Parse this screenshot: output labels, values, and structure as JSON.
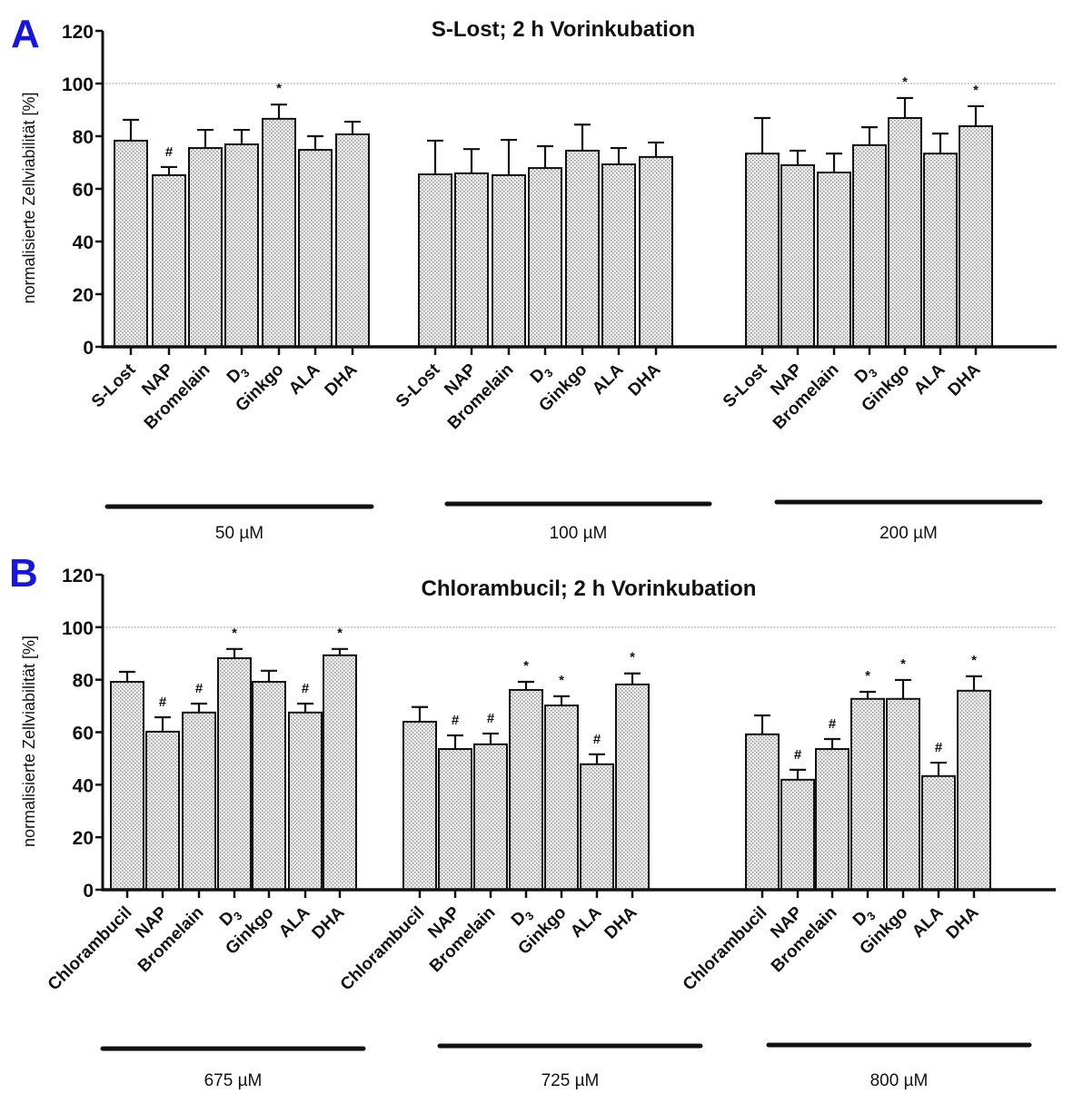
{
  "chart_data": [
    {
      "type": "bar",
      "panel": "A",
      "title": "S-Lost; 2 h Vorinkubation",
      "xlabel": "",
      "ylabel": "normalisierte Zellviabilität [%]",
      "ylim": [
        0,
        120
      ],
      "yticks": [
        0,
        20,
        40,
        60,
        80,
        100,
        120
      ],
      "reference_line": 100,
      "groups": [
        {
          "label": "50 µM",
          "categories": [
            "S-Lost",
            "NAP",
            "Bromelain",
            "D3",
            "Ginkgo",
            "ALA",
            "DHA"
          ],
          "values": [
            78.3,
            65.2,
            75.5,
            76.9,
            86.6,
            74.8,
            80.7
          ],
          "error_upper": [
            86.2,
            68.3,
            82.4,
            82.4,
            92.0,
            80.0,
            85.5
          ],
          "markers": [
            "",
            "#",
            "",
            "",
            "*",
            "",
            ""
          ]
        },
        {
          "label": "100 µM",
          "categories": [
            "S-Lost",
            "NAP",
            "Bromelain",
            "D3",
            "Ginkgo",
            "ALA",
            "DHA"
          ],
          "values": [
            65.5,
            65.9,
            65.2,
            67.9,
            74.5,
            69.3,
            72.1
          ],
          "error_upper": [
            78.3,
            75.1,
            78.6,
            76.2,
            84.4,
            75.5,
            77.6
          ],
          "markers": [
            "",
            "",
            "",
            "",
            "",
            "",
            ""
          ]
        },
        {
          "label": "200 µM",
          "categories": [
            "S-Lost",
            "NAP",
            "Bromelain",
            "D3",
            "Ginkgo",
            "ALA",
            "DHA"
          ],
          "values": [
            73.4,
            69.0,
            66.2,
            76.6,
            86.9,
            73.4,
            83.8
          ],
          "error_upper": [
            86.9,
            74.5,
            73.4,
            83.4,
            94.5,
            81.0,
            91.4
          ],
          "markers": [
            "",
            "",
            "",
            "",
            "*",
            "",
            "*"
          ]
        }
      ]
    },
    {
      "type": "bar",
      "panel": "B",
      "title": "Chlorambucil; 2 h Vorinkubation",
      "xlabel": "",
      "ylabel": "normalisierte Zellviabilität [%]",
      "ylim": [
        0,
        120
      ],
      "yticks": [
        0,
        20,
        40,
        60,
        80,
        100,
        120
      ],
      "reference_line": 100,
      "groups": [
        {
          "label": "675 µM",
          "categories": [
            "Chlorambucil",
            "NAP",
            "Bromelain",
            "D3",
            "Ginkgo",
            "ALA",
            "DHA"
          ],
          "values": [
            79.2,
            60.2,
            67.5,
            88.2,
            79.2,
            67.5,
            89.3
          ],
          "error_upper": [
            83.0,
            65.7,
            70.9,
            91.7,
            83.4,
            70.9,
            91.7
          ],
          "markers": [
            "",
            "#",
            "#",
            "*",
            "",
            "#",
            "*"
          ]
        },
        {
          "label": "725 µM",
          "categories": [
            "Chlorambucil",
            "NAP",
            "Bromelain",
            "D3",
            "Ginkgo",
            "ALA",
            "DHA"
          ],
          "values": [
            64.0,
            53.6,
            55.4,
            76.1,
            70.2,
            47.8,
            78.2
          ],
          "error_upper": [
            69.6,
            58.8,
            59.5,
            79.2,
            73.7,
            51.6,
            82.4
          ],
          "markers": [
            "",
            "#",
            "#",
            "*",
            "*",
            "#",
            "*"
          ]
        },
        {
          "label": "800 µM",
          "categories": [
            "Chlorambucil",
            "NAP",
            "Bromelain",
            "D3",
            "Ginkgo",
            "ALA",
            "DHA"
          ],
          "values": [
            59.2,
            41.9,
            53.6,
            72.7,
            72.7,
            43.3,
            75.8
          ],
          "error_upper": [
            66.4,
            45.7,
            57.4,
            75.4,
            79.9,
            48.4,
            81.3
          ],
          "markers": [
            "",
            "#",
            "#",
            "*",
            "*",
            "#",
            "*"
          ]
        }
      ]
    }
  ],
  "colors": {
    "panel_letter": "#1515e6",
    "bar_fill": "#e6e6e6",
    "bar_stroke": "#111111",
    "reference_line": "#bdbdbd"
  }
}
